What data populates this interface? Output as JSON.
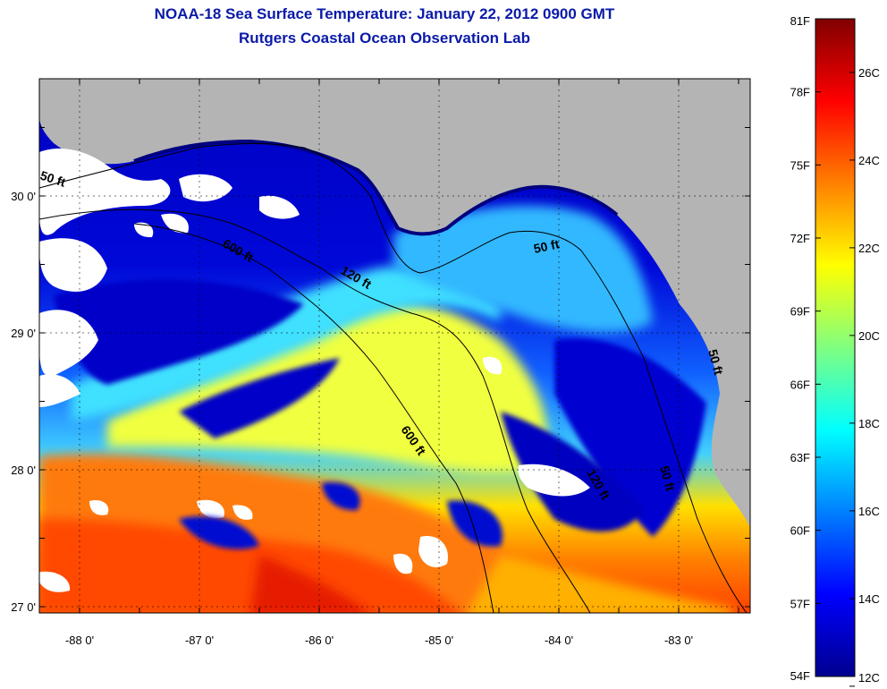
{
  "title": {
    "line1": "NOAA-18 Sea Surface Temperature:  January 22, 2012 0900 GMT",
    "line2": "Rutgers Coastal Ocean Observation Lab"
  },
  "map": {
    "lat_ticks": [
      {
        "value": 30,
        "label": "30 0'"
      },
      {
        "value": 29,
        "label": "29 0'"
      },
      {
        "value": 28,
        "label": "28 0'"
      },
      {
        "value": 27,
        "label": "27 0'"
      }
    ],
    "lon_ticks": [
      {
        "value": -88,
        "label": "-88 0'"
      },
      {
        "value": -87,
        "label": "-87 0'"
      },
      {
        "value": -86,
        "label": "-86 0'"
      },
      {
        "value": -85,
        "label": "-85 0'"
      },
      {
        "value": -84,
        "label": "-84 0'"
      },
      {
        "value": -83,
        "label": "-83 0'"
      }
    ],
    "contour_labels": [
      "50 ft",
      "600 ft",
      "120 ft",
      "50 ft",
      "600 ft",
      "120 ft",
      "50 ft",
      "50 ft"
    ]
  },
  "colorbar": {
    "fahrenheit": [
      "81F",
      "78F",
      "75F",
      "72F",
      "69F",
      "66F",
      "63F",
      "60F",
      "57F",
      "54F"
    ],
    "celsius": [
      "26C",
      "24C",
      "22C",
      "20C",
      "18C",
      "16C",
      "14C",
      "12C"
    ],
    "colors": [
      "#00008f",
      "#0000ff",
      "#0080ff",
      "#00ffff",
      "#80ff80",
      "#ffff00",
      "#ff8000",
      "#ff0000",
      "#800000"
    ]
  }
}
